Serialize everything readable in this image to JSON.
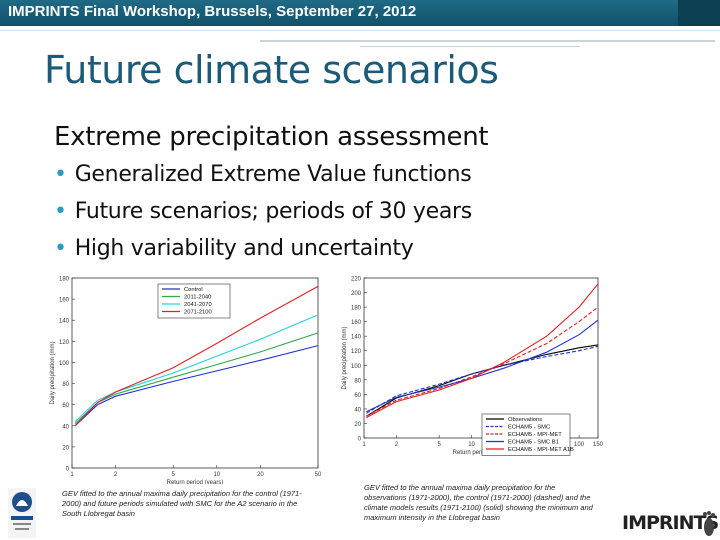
{
  "header": {
    "event": "IMPRINTS Final Workshop, Brussels, September 27, 2012",
    "accent_color": "#1f6b86"
  },
  "slide": {
    "title": "Future climate scenarios",
    "subtitle": "Extreme precipitation assessment",
    "bullets": [
      "Generalized Extreme Value functions",
      "Future scenarios; periods of 30 years",
      "High variability and uncertainty"
    ]
  },
  "chart_data": [
    {
      "type": "line",
      "xlabel": "Return period (years)",
      "ylabel": "Daily precipitation (mm)",
      "x_ticks": [
        "1",
        "2",
        "5",
        "10",
        "20",
        "50"
      ],
      "y_ticks": [
        "0",
        "20",
        "40",
        "60",
        "80",
        "100",
        "120",
        "140",
        "160",
        "180"
      ],
      "ylim": [
        0,
        180
      ],
      "xlim": [
        1,
        50
      ],
      "legend_position": "top-right",
      "series": [
        {
          "name": "Control",
          "color": "#2233cc",
          "x": [
            1.05,
            1.5,
            2,
            5,
            10,
            20,
            50
          ],
          "y": [
            40,
            60,
            68,
            82,
            92,
            102,
            116
          ]
        },
        {
          "name": "2011-2040",
          "color": "#2ea84a",
          "x": [
            1.05,
            1.5,
            2,
            5,
            10,
            20,
            50
          ],
          "y": [
            42,
            62,
            70,
            86,
            98,
            110,
            128
          ]
        },
        {
          "name": "2041-2070",
          "color": "#22d0e6",
          "x": [
            1.05,
            1.5,
            2,
            5,
            10,
            20,
            50
          ],
          "y": [
            44,
            64,
            72,
            90,
            106,
            122,
            145
          ]
        },
        {
          "name": "2071-2100",
          "color": "#dd2222",
          "x": [
            1.05,
            1.5,
            2,
            5,
            10,
            20,
            50
          ],
          "y": [
            40,
            62,
            72,
            95,
            118,
            142,
            172
          ]
        }
      ],
      "caption": "GEV fitted to the annual maxima daily precipitation for the control (1971-2000) and future periods simulated with SMC for the A2 scenario in the South Llobregat basin"
    },
    {
      "type": "line",
      "xlabel": "Return period (years)",
      "ylabel": "Daily precipitation (mm)",
      "x_ticks": [
        "1",
        "2",
        "5",
        "10",
        "20",
        "50",
        "100",
        "150"
      ],
      "y_ticks": [
        "0",
        "20",
        "40",
        "60",
        "80",
        "100",
        "120",
        "140",
        "160",
        "180",
        "200",
        "220"
      ],
      "ylim": [
        0,
        220
      ],
      "xlim": [
        1,
        150
      ],
      "legend_position": "bottom-right",
      "series": [
        {
          "name": "Observations",
          "color": "#000000",
          "dash": "solid",
          "x": [
            1.05,
            2,
            5,
            10,
            20,
            50,
            100,
            150
          ],
          "y": [
            30,
            55,
            72,
            88,
            100,
            115,
            124,
            128
          ]
        },
        {
          "name": "ECHAM5 - SMC",
          "color": "#2233cc",
          "dash": "dashed",
          "x": [
            1.05,
            2,
            5,
            10,
            20,
            50,
            100,
            150
          ],
          "y": [
            34,
            58,
            74,
            88,
            100,
            112,
            120,
            126
          ]
        },
        {
          "name": "ECHAM5 - MPI-MET",
          "color": "#dd2222",
          "dash": "dashed",
          "x": [
            1.05,
            2,
            5,
            10,
            20,
            50,
            100,
            150
          ],
          "y": [
            30,
            52,
            68,
            84,
            102,
            130,
            160,
            180
          ]
        },
        {
          "name": "ECHAM5 - SMC B1",
          "color": "#2233cc",
          "dash": "solid",
          "x": [
            1.05,
            2,
            5,
            10,
            20,
            50,
            100,
            150
          ],
          "y": [
            36,
            56,
            70,
            82,
            96,
            118,
            142,
            162
          ]
        },
        {
          "name": "ECHAM5 - MPI-MET A1B",
          "color": "#dd2222",
          "dash": "solid",
          "x": [
            1.05,
            2,
            5,
            10,
            20,
            50,
            100,
            150
          ],
          "y": [
            28,
            50,
            66,
            82,
            104,
            140,
            180,
            212
          ]
        }
      ],
      "caption": "GEV fitted to the annual maxima daily precipitation for the observations (1971-2000), the control (1971-2000) (dashed) and the climate models results (1971-2100) (solid) showing the minimum and maximum intensity in the Llobregat basin"
    }
  ],
  "logos": {
    "right_text": "IMPRINTS"
  }
}
